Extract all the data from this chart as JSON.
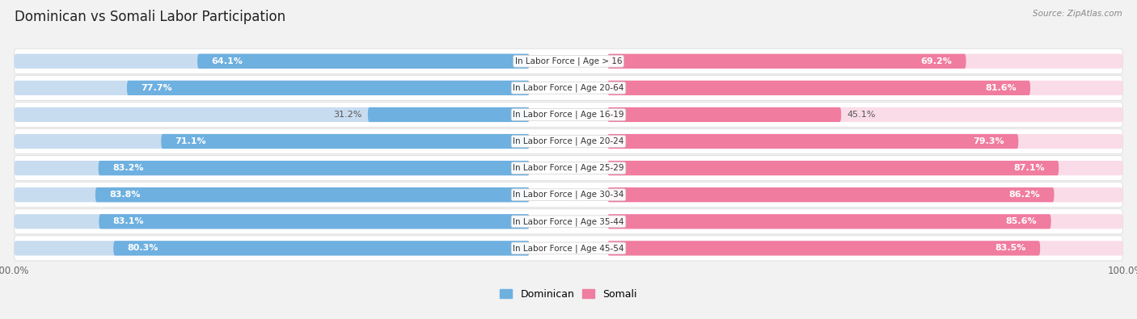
{
  "title": "Dominican vs Somali Labor Participation",
  "source": "Source: ZipAtlas.com",
  "categories": [
    "In Labor Force | Age > 16",
    "In Labor Force | Age 20-64",
    "In Labor Force | Age 16-19",
    "In Labor Force | Age 20-24",
    "In Labor Force | Age 25-29",
    "In Labor Force | Age 30-34",
    "In Labor Force | Age 35-44",
    "In Labor Force | Age 45-54"
  ],
  "dominican_values": [
    64.1,
    77.7,
    31.2,
    71.1,
    83.2,
    83.8,
    83.1,
    80.3
  ],
  "somali_values": [
    69.2,
    81.6,
    45.1,
    79.3,
    87.1,
    86.2,
    85.6,
    83.5
  ],
  "dominican_color": "#6EB0E0",
  "somali_color": "#F07CA0",
  "dominican_light_color": "#C8DCF0",
  "somali_light_color": "#FADCE8",
  "bg_color": "#F2F2F2",
  "row_bg_color": "#FFFFFF",
  "row_separator_color": "#E0E0E0",
  "max_value": 100.0,
  "bar_height": 0.55,
  "title_fontsize": 12,
  "label_fontsize": 8,
  "tick_fontsize": 8.5,
  "legend_fontsize": 9,
  "value_threshold": 50
}
